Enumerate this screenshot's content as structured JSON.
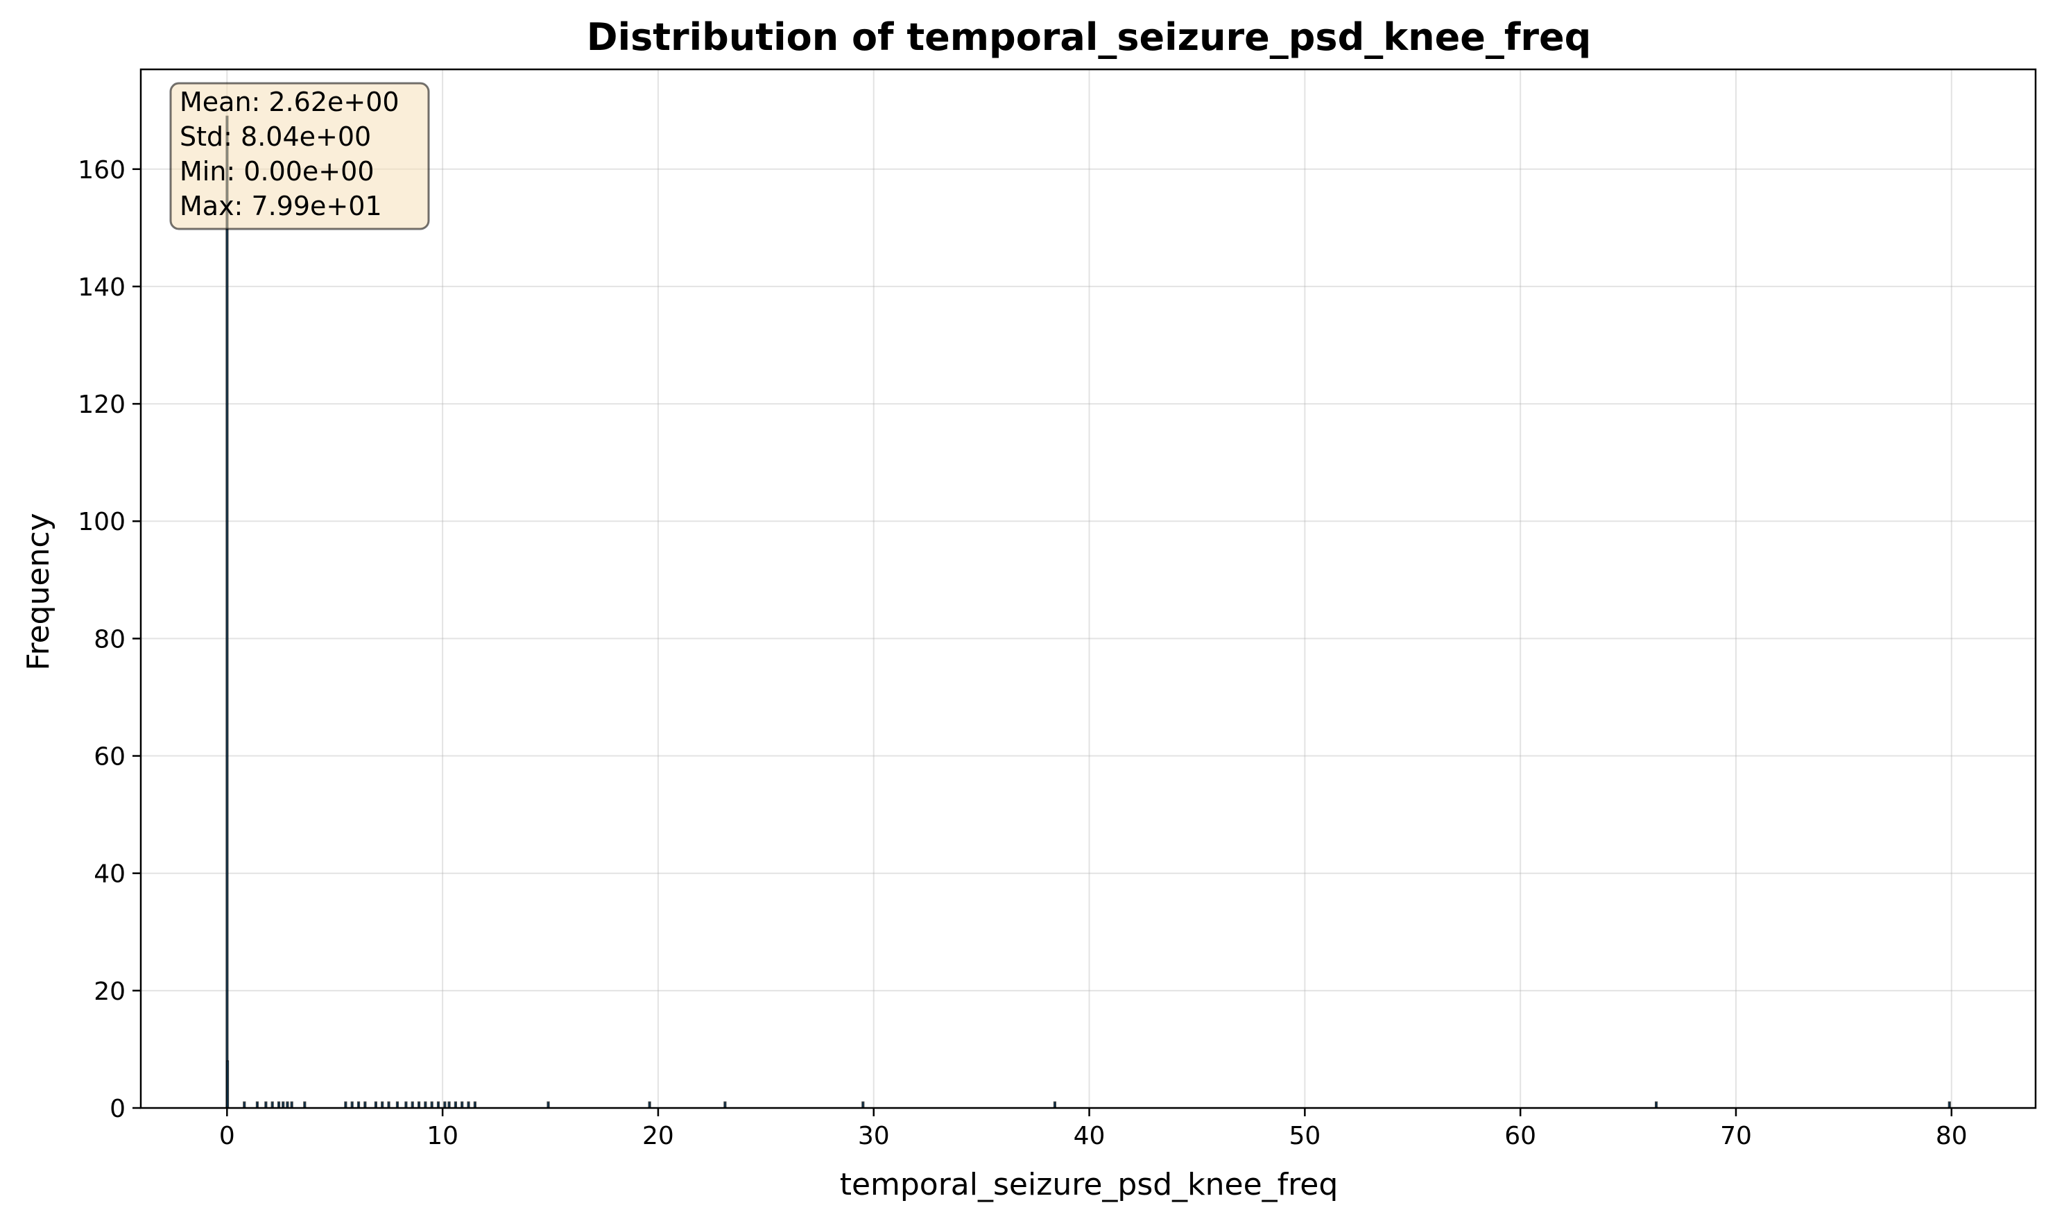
{
  "chart_data": {
    "type": "bar",
    "subtype": "histogram",
    "title": "Distribution of temporal_seizure_psd_knee_freq",
    "xlabel": "temporal_seizure_psd_knee_freq",
    "ylabel": "Frequency",
    "xlim": [
      -4.0,
      83.9
    ],
    "ylim": [
      0,
      177
    ],
    "xticks": [
      0,
      10,
      20,
      30,
      40,
      50,
      60,
      70,
      80
    ],
    "yticks": [
      0,
      20,
      40,
      60,
      80,
      100,
      120,
      140,
      160
    ],
    "grid": true,
    "bar_color": "#1f77b4",
    "stats": {
      "mean": "Mean: 2.62e+00",
      "std": "Std: 8.04e+00",
      "min": "Min: 0.00e+00",
      "max": "Max: 7.99e+01"
    },
    "bars": [
      {
        "x": 0.0,
        "y": 169
      },
      {
        "x": 0.02,
        "y": 8
      },
      {
        "x": 0.8,
        "y": 1
      },
      {
        "x": 1.4,
        "y": 1
      },
      {
        "x": 1.8,
        "y": 1
      },
      {
        "x": 2.1,
        "y": 1
      },
      {
        "x": 2.4,
        "y": 1
      },
      {
        "x": 2.6,
        "y": 1
      },
      {
        "x": 2.8,
        "y": 1
      },
      {
        "x": 3.0,
        "y": 1
      },
      {
        "x": 3.6,
        "y": 1
      },
      {
        "x": 5.5,
        "y": 1
      },
      {
        "x": 5.8,
        "y": 1
      },
      {
        "x": 6.1,
        "y": 1
      },
      {
        "x": 6.4,
        "y": 1
      },
      {
        "x": 6.9,
        "y": 1
      },
      {
        "x": 7.2,
        "y": 1
      },
      {
        "x": 7.5,
        "y": 1
      },
      {
        "x": 7.9,
        "y": 1
      },
      {
        "x": 8.3,
        "y": 1
      },
      {
        "x": 8.6,
        "y": 1
      },
      {
        "x": 8.9,
        "y": 1
      },
      {
        "x": 9.2,
        "y": 1
      },
      {
        "x": 9.5,
        "y": 1
      },
      {
        "x": 9.8,
        "y": 1
      },
      {
        "x": 10.1,
        "y": 1
      },
      {
        "x": 10.3,
        "y": 1
      },
      {
        "x": 10.6,
        "y": 1
      },
      {
        "x": 10.9,
        "y": 1
      },
      {
        "x": 11.2,
        "y": 1
      },
      {
        "x": 11.5,
        "y": 1
      },
      {
        "x": 14.9,
        "y": 1
      },
      {
        "x": 19.6,
        "y": 1
      },
      {
        "x": 23.1,
        "y": 1
      },
      {
        "x": 29.5,
        "y": 1
      },
      {
        "x": 38.4,
        "y": 1
      },
      {
        "x": 66.3,
        "y": 1
      },
      {
        "x": 79.9,
        "y": 1
      }
    ]
  }
}
